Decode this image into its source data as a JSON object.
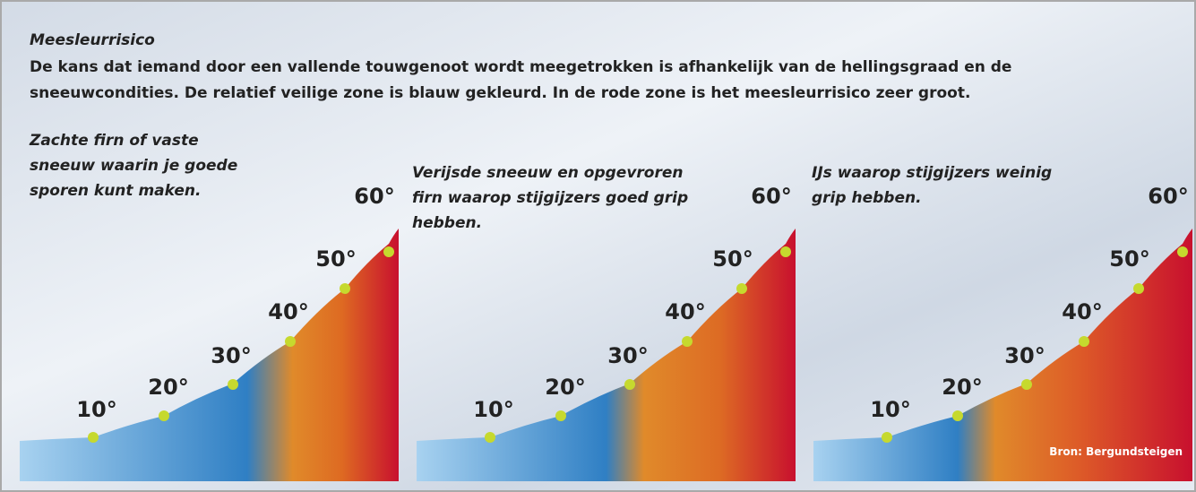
{
  "header": {
    "title": "Meesleurrisico",
    "description": [
      "De kans dat iemand door een vallende touwgenoot wordt meegetrokken is afhankelijk van de hellingsgraad en de",
      "sneeuwcondities. De relatief veilige zone is blauw gekleurd. In de rode zone is het meesleurrisico zeer groot."
    ]
  },
  "panels": [
    {
      "label": [
        "Zachte firn of vaste",
        "sneeuw waarin je goede",
        "sporen kunt maken."
      ],
      "angles": [
        "10°",
        "20°",
        "30°",
        "40°",
        "50°",
        "60°"
      ]
    },
    {
      "label": [
        "Verijsde sneeuw en opgevroren",
        "firn waarop stijgijzers goed grip",
        "hebben."
      ],
      "angles": [
        "10°",
        "20°",
        "30°",
        "40°",
        "50°",
        "60°"
      ]
    },
    {
      "label": [
        "IJs waarop stijgijzers weinig",
        "grip hebben."
      ],
      "angles": [
        "10°",
        "20°",
        "30°",
        "40°",
        "50°",
        "60°"
      ]
    }
  ],
  "source": "Bron: Bergundsteigen"
}
